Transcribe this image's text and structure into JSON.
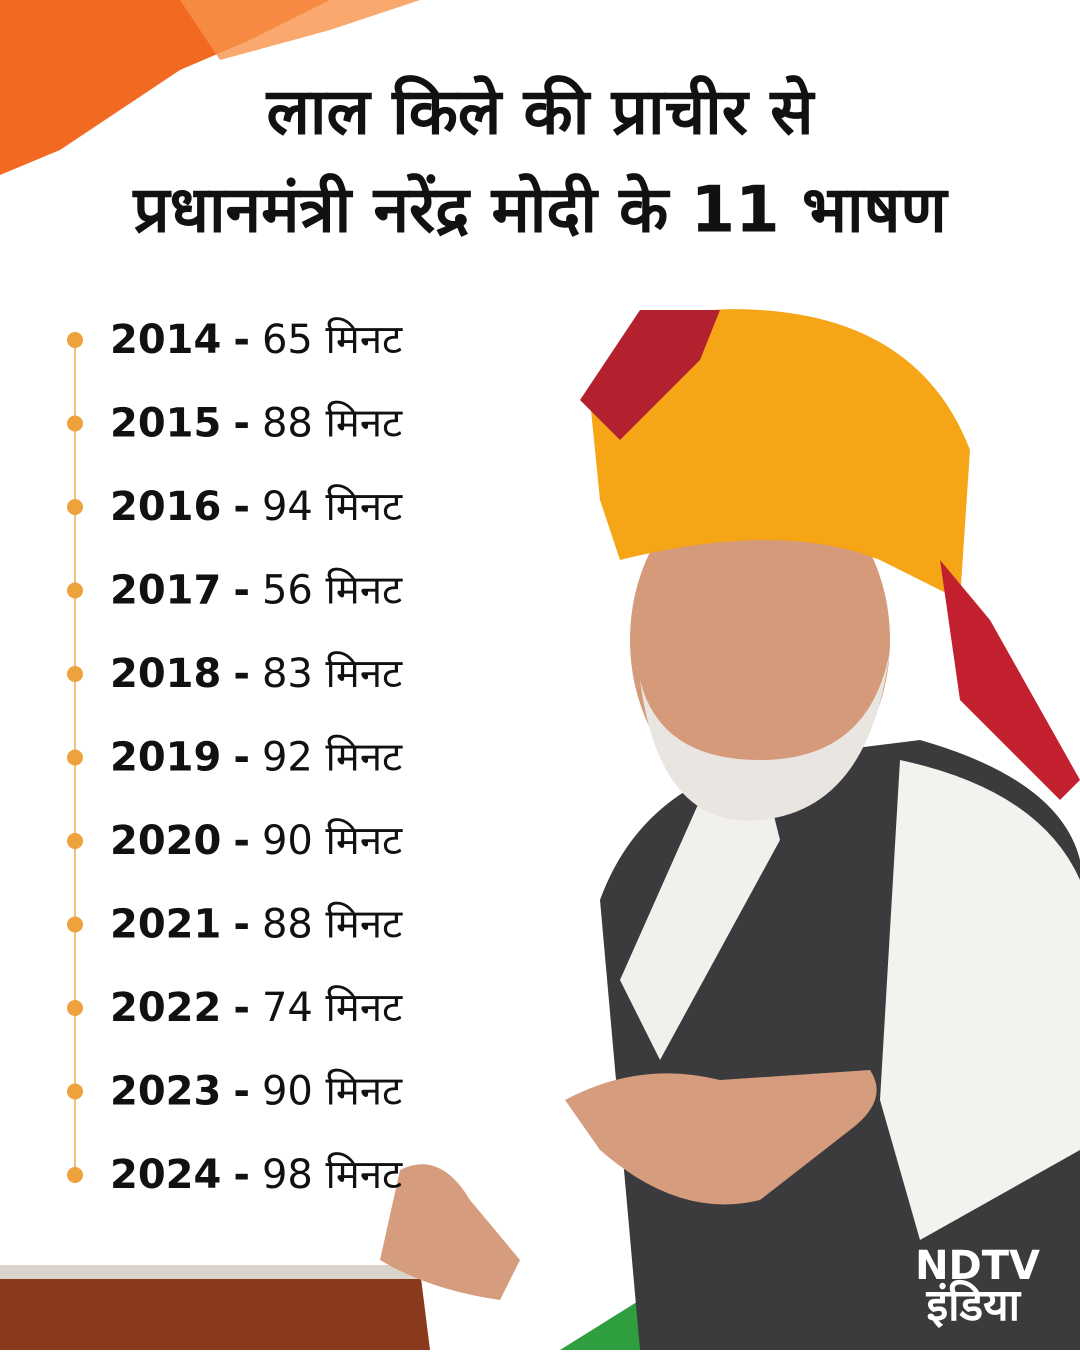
{
  "header": {
    "title_lines": [
      "लाल किले की प्राचीर से",
      "प्रधानमंत्री नरेंद्र मोदी के 11 भाषण"
    ]
  },
  "list": {
    "separator": "-",
    "items": [
      {
        "year": "2014",
        "duration": "65 मिनट"
      },
      {
        "year": "2015",
        "duration": "88 मिनट"
      },
      {
        "year": "2016",
        "duration": "94 मिनट"
      },
      {
        "year": "2017",
        "duration": "56 मिनट"
      },
      {
        "year": "2018",
        "duration": "83 मिनट"
      },
      {
        "year": "2019",
        "duration": "92 मिनट"
      },
      {
        "year": "2020",
        "duration": "90 मिनट"
      },
      {
        "year": "2021",
        "duration": "88 मिनट"
      },
      {
        "year": "2022",
        "duration": "74 मिनट"
      },
      {
        "year": "2023",
        "duration": "90 मिनट"
      },
      {
        "year": "2024",
        "duration": "98 मिनट"
      }
    ]
  },
  "logo": {
    "brand": "NDTV",
    "sub": "इंडिया"
  }
}
